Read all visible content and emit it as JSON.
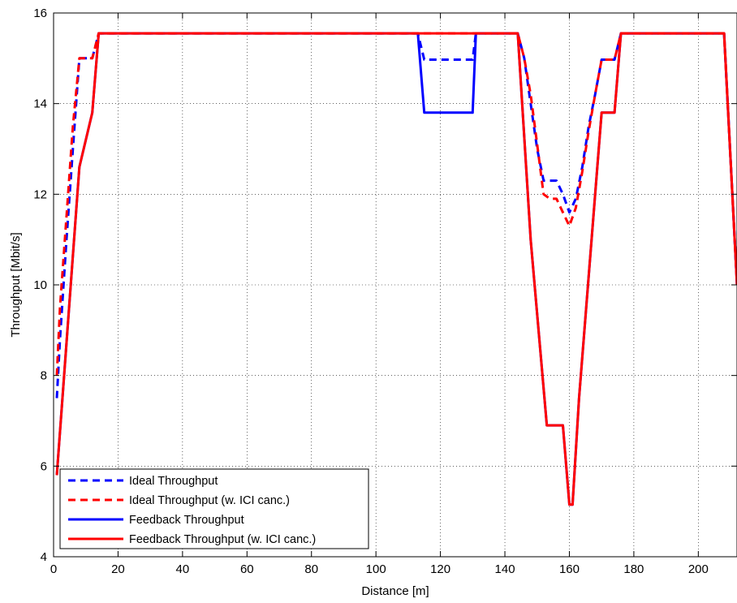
{
  "chart_data": {
    "type": "line",
    "title": "",
    "xlabel": "Distance [m]",
    "ylabel": "Throughput [Mbit/s]",
    "xlim": [
      0,
      212
    ],
    "ylim": [
      4,
      16
    ],
    "xticks": [
      0,
      20,
      40,
      60,
      80,
      100,
      120,
      140,
      160,
      180,
      200
    ],
    "yticks": [
      4,
      6,
      8,
      10,
      12,
      14,
      16
    ],
    "grid": true,
    "legend_position": "bottom-left",
    "colors": {
      "blue": "#0000ff",
      "red": "#ff0000"
    },
    "series": [
      {
        "name": "Ideal Throughput",
        "color": "#0000ff",
        "style": "dashed",
        "x": [
          1,
          2,
          4,
          6,
          8,
          10,
          12,
          14,
          20,
          112,
          113,
          115,
          120,
          125,
          130,
          131,
          135,
          144,
          146,
          148,
          150,
          152,
          154,
          156,
          158,
          160,
          162,
          164,
          166,
          168,
          170,
          172,
          174,
          176,
          208,
          212
        ],
        "y": [
          7.5,
          8.8,
          11.0,
          13.0,
          15.0,
          15.0,
          15.0,
          15.55,
          15.55,
          15.55,
          15.55,
          14.97,
          14.97,
          14.97,
          14.97,
          15.55,
          15.55,
          15.55,
          15.0,
          14.0,
          13.0,
          12.3,
          12.3,
          12.3,
          12.0,
          11.6,
          11.9,
          12.6,
          13.5,
          14.2,
          14.97,
          14.97,
          14.97,
          15.55,
          15.55,
          10.0
        ]
      },
      {
        "name": "Ideal Throughput (w. ICI canc.)",
        "color": "#ff0000",
        "style": "dashed",
        "x": [
          1,
          2,
          4,
          6,
          8,
          10,
          12,
          14,
          20,
          144,
          146,
          148,
          150,
          152,
          154,
          156,
          158,
          160,
          162,
          164,
          166,
          168,
          170,
          172,
          174,
          176,
          208,
          212
        ],
        "y": [
          8.0,
          9.5,
          11.5,
          13.5,
          15.0,
          15.0,
          15.0,
          15.55,
          15.55,
          15.55,
          15.0,
          14.2,
          13.1,
          12.0,
          11.9,
          11.9,
          11.6,
          11.3,
          11.7,
          12.5,
          13.4,
          14.2,
          14.97,
          14.97,
          14.97,
          15.55,
          15.55,
          10.0
        ]
      },
      {
        "name": "Feedback Throughput",
        "color": "#0000ff",
        "style": "solid",
        "x": [
          1,
          8,
          12,
          14,
          20,
          112,
          113,
          115,
          120,
          125,
          130,
          131,
          135,
          144,
          148,
          153,
          158,
          160,
          161,
          163,
          170,
          172,
          174,
          176,
          208,
          212
        ],
        "y": [
          5.8,
          12.6,
          13.8,
          15.55,
          15.55,
          15.55,
          15.55,
          13.8,
          13.8,
          13.8,
          13.8,
          15.55,
          15.55,
          15.55,
          11.0,
          6.9,
          6.9,
          5.15,
          5.15,
          7.5,
          13.8,
          13.8,
          13.8,
          15.55,
          15.55,
          10.0
        ]
      },
      {
        "name": "Feedback Throughput (w. ICI canc.)",
        "color": "#ff0000",
        "style": "solid",
        "x": [
          1,
          8,
          12,
          14,
          20,
          144,
          148,
          153,
          158,
          160,
          161,
          163,
          170,
          172,
          174,
          176,
          208,
          212
        ],
        "y": [
          5.8,
          12.6,
          13.8,
          15.55,
          15.55,
          15.55,
          11.0,
          6.9,
          6.9,
          5.15,
          5.15,
          7.5,
          13.8,
          13.8,
          13.8,
          15.55,
          15.55,
          10.0
        ]
      }
    ]
  }
}
